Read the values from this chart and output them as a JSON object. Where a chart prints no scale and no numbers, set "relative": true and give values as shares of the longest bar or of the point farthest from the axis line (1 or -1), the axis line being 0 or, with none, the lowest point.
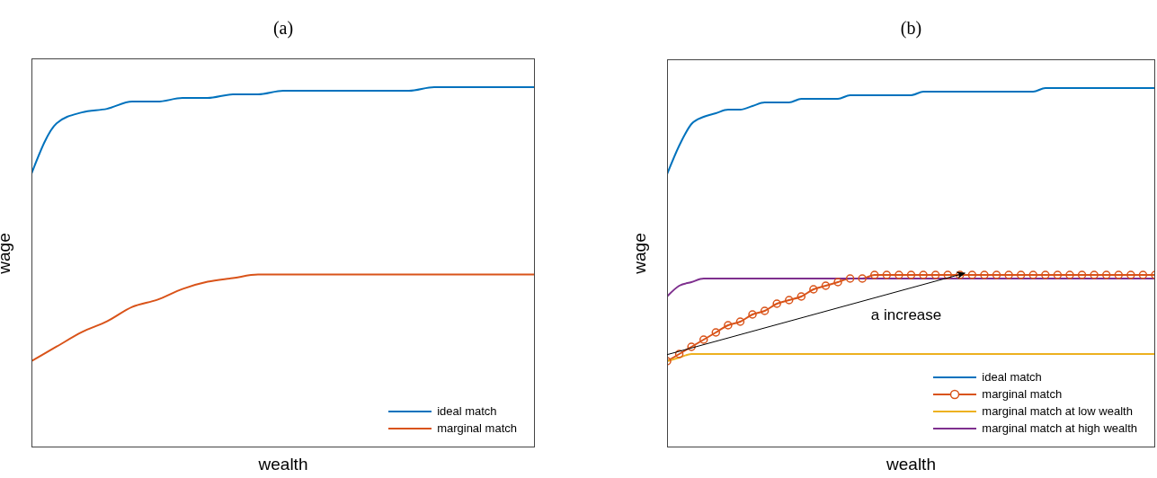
{
  "chart_data": [
    {
      "type": "line",
      "title": "(a)",
      "xlabel": "wealth",
      "ylabel": "wage",
      "relative": true,
      "legend": "bottom right",
      "grid": false,
      "marker": "none",
      "categories": [
        null,
        null,
        null,
        null,
        null,
        null,
        null,
        null,
        null,
        null,
        null,
        null,
        null,
        null,
        null,
        null,
        null,
        null,
        null,
        null,
        null
      ],
      "series": [
        {
          "name": "ideal match",
          "color": "#0072bd",
          "values": [
            0.76,
            0.9,
            0.93,
            0.94,
            0.96,
            0.96,
            0.97,
            0.97,
            0.98,
            0.98,
            0.99,
            0.99,
            0.99,
            0.99,
            0.99,
            0.99,
            1,
            1,
            1,
            1,
            1
          ]
        },
        {
          "name": "marginal match",
          "color": "#d95319",
          "values": [
            0.24,
            0.28,
            0.32,
            0.35,
            0.39,
            0.41,
            0.44,
            0.46,
            0.47,
            0.48,
            0.48,
            0.48,
            0.48,
            0.48,
            0.48,
            0.48,
            0.48,
            0.48,
            0.48,
            0.48,
            0.48
          ]
        }
      ]
    },
    {
      "type": "line",
      "title": "(b)",
      "xlabel": "wealth",
      "ylabel": "wage",
      "relative": true,
      "legend": "bottom right",
      "grid": false,
      "marker": "none",
      "annotations": [
        "a increase"
      ],
      "categories": [
        null,
        null,
        null,
        null,
        null,
        null,
        null,
        null,
        null,
        null,
        null,
        null,
        null,
        null,
        null,
        null,
        null,
        null,
        null,
        null,
        null,
        null,
        null,
        null,
        null,
        null,
        null,
        null,
        null,
        null,
        null,
        null,
        null,
        null,
        null,
        null,
        null,
        null,
        null,
        null,
        null
      ],
      "series": [
        {
          "name": "ideal match",
          "color": "#0072bd",
          "values": [
            0.76,
            0.84,
            0.9,
            0.92,
            0.93,
            0.94,
            0.94,
            0.95,
            0.96,
            0.96,
            0.96,
            0.97,
            0.97,
            0.97,
            0.97,
            0.98,
            0.98,
            0.98,
            0.98,
            0.98,
            0.98,
            0.99,
            0.99,
            0.99,
            0.99,
            0.99,
            0.99,
            0.99,
            0.99,
            0.99,
            0.99,
            1,
            1,
            1,
            1,
            1,
            1,
            1,
            1,
            1,
            1
          ]
        },
        {
          "name": "marginal match",
          "color": "#d95319",
          "marker": "circle",
          "values": [
            0.24,
            0.26,
            0.28,
            0.3,
            0.32,
            0.34,
            0.35,
            0.37,
            0.38,
            0.4,
            0.41,
            0.42,
            0.44,
            0.45,
            0.46,
            0.47,
            0.47,
            0.48,
            0.48,
            0.48,
            0.48,
            0.48,
            0.48,
            0.48,
            0.48,
            0.48,
            0.48,
            0.48,
            0.48,
            0.48,
            0.48,
            0.48,
            0.48,
            0.48,
            0.48,
            0.48,
            0.48,
            0.48,
            0.48,
            0.48,
            0.48
          ]
        },
        {
          "name": "marginal match at low wealth",
          "color": "#edb120",
          "values": [
            0.24,
            0.25,
            0.26,
            0.26,
            0.26,
            0.26,
            0.26,
            0.26,
            0.26,
            0.26,
            0.26,
            0.26,
            0.26,
            0.26,
            0.26,
            0.26,
            0.26,
            0.26,
            0.26,
            0.26,
            0.26,
            0.26,
            0.26,
            0.26,
            0.26,
            0.26,
            0.26,
            0.26,
            0.26,
            0.26,
            0.26,
            0.26,
            0.26,
            0.26,
            0.26,
            0.26,
            0.26,
            0.26,
            0.26,
            0.26,
            0.26
          ]
        },
        {
          "name": "marginal match at high wealth",
          "color": "#7e2f8e",
          "values": [
            0.42,
            0.45,
            0.46,
            0.47,
            0.47,
            0.47,
            0.47,
            0.47,
            0.47,
            0.47,
            0.47,
            0.47,
            0.47,
            0.47,
            0.47,
            0.47,
            0.47,
            0.47,
            0.47,
            0.47,
            0.47,
            0.47,
            0.47,
            0.47,
            0.47,
            0.47,
            0.47,
            0.47,
            0.47,
            0.47,
            0.47,
            0.47,
            0.47,
            0.47,
            0.47,
            0.47,
            0.47,
            0.47,
            0.47,
            0.47,
            0.47
          ]
        }
      ]
    }
  ]
}
